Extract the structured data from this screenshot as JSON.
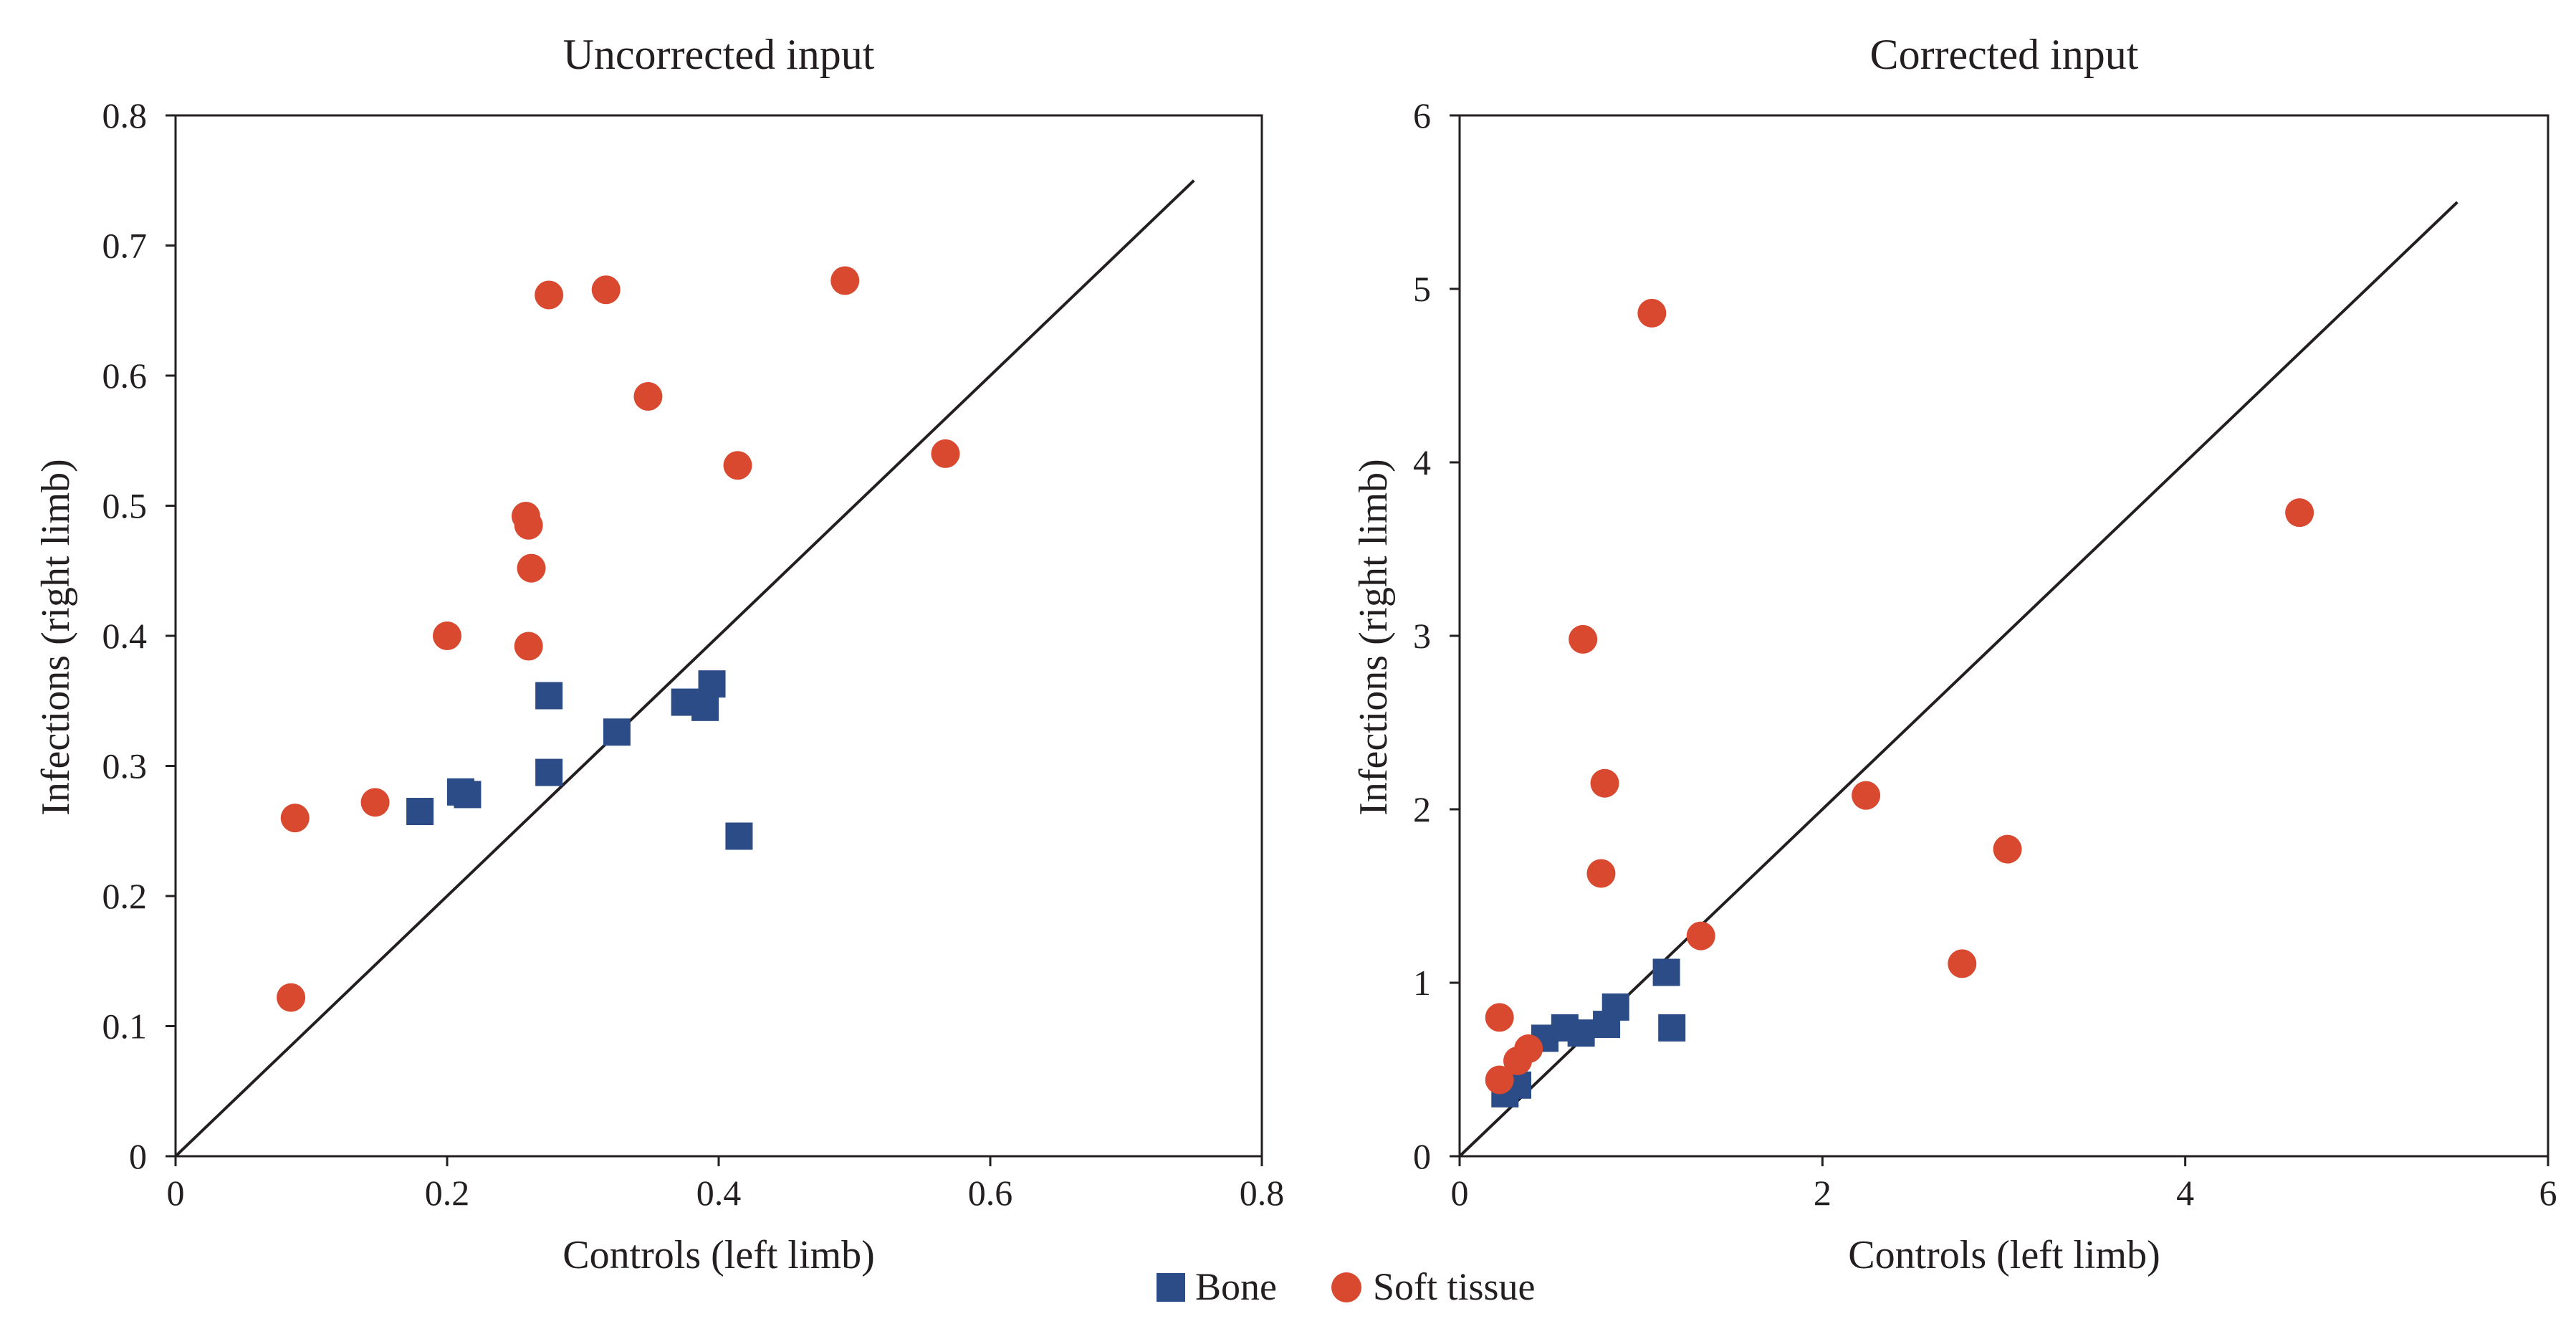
{
  "chart_data": [
    {
      "type": "scatter",
      "title": "Uncorrected input",
      "xlabel": "Controls (left limb)",
      "ylabel": "Infections (right limb)",
      "xlim": [
        0,
        0.8
      ],
      "ylim": [
        0,
        0.8
      ],
      "xticks": [
        "0",
        "0.2",
        "0.4",
        "0.6",
        "0.8"
      ],
      "yticks": [
        "0",
        "0.1",
        "0.2",
        "0.3",
        "0.4",
        "0.5",
        "0.6",
        "0.7",
        "0.8"
      ],
      "reference_line": {
        "from": [
          0,
          0
        ],
        "to": [
          0.75,
          0.75
        ]
      },
      "series": [
        {
          "name": "Bone",
          "marker": "square",
          "color": "#2b4c86",
          "points": [
            [
              0.18,
              0.265
            ],
            [
              0.21,
              0.28
            ],
            [
              0.215,
              0.278
            ],
            [
              0.275,
              0.295
            ],
            [
              0.275,
              0.354
            ],
            [
              0.325,
              0.326
            ],
            [
              0.375,
              0.349
            ],
            [
              0.39,
              0.345
            ],
            [
              0.395,
              0.363
            ],
            [
              0.415,
              0.246
            ]
          ]
        },
        {
          "name": "Soft tissue",
          "marker": "circle",
          "color": "#d8492f",
          "points": [
            [
              0.085,
              0.122
            ],
            [
              0.088,
              0.26
            ],
            [
              0.147,
              0.272
            ],
            [
              0.2,
              0.4
            ],
            [
              0.258,
              0.492
            ],
            [
              0.26,
              0.485
            ],
            [
              0.262,
              0.452
            ],
            [
              0.26,
              0.392
            ],
            [
              0.275,
              0.662
            ],
            [
              0.317,
              0.666
            ],
            [
              0.348,
              0.584
            ],
            [
              0.414,
              0.531
            ],
            [
              0.493,
              0.673
            ],
            [
              0.567,
              0.54
            ]
          ]
        }
      ]
    },
    {
      "type": "scatter",
      "title": "Corrected input",
      "xlabel": "Controls (left limb)",
      "ylabel": "Infections (right limb)",
      "xlim": [
        0,
        6
      ],
      "ylim": [
        0,
        6
      ],
      "xticks": [
        "0",
        "2",
        "4",
        "6"
      ],
      "yticks": [
        "0",
        "1",
        "2",
        "3",
        "4",
        "5",
        "6"
      ],
      "reference_line": {
        "from": [
          0,
          0
        ],
        "to": [
          5.5,
          5.5
        ]
      },
      "series": [
        {
          "name": "Bone",
          "marker": "square",
          "color": "#2b4c86",
          "points": [
            [
              0.25,
              0.36
            ],
            [
              0.32,
              0.41
            ],
            [
              0.47,
              0.68
            ],
            [
              0.58,
              0.74
            ],
            [
              0.67,
              0.71
            ],
            [
              0.81,
              0.76
            ],
            [
              0.86,
              0.86
            ],
            [
              1.14,
              1.06
            ],
            [
              1.17,
              0.74
            ]
          ]
        },
        {
          "name": "Soft tissue",
          "marker": "circle",
          "color": "#d8492f",
          "points": [
            [
              0.22,
              0.8
            ],
            [
              0.22,
              0.44
            ],
            [
              0.32,
              0.55
            ],
            [
              0.38,
              0.62
            ],
            [
              0.68,
              2.98
            ],
            [
              0.78,
              1.63
            ],
            [
              0.8,
              2.15
            ],
            [
              1.06,
              4.86
            ],
            [
              1.33,
              1.27
            ],
            [
              2.24,
              2.08
            ],
            [
              2.77,
              1.11
            ],
            [
              3.02,
              1.77
            ],
            [
              4.63,
              3.71
            ]
          ]
        }
      ]
    }
  ],
  "legend": {
    "items": [
      {
        "label": "Bone",
        "marker": "square",
        "color": "#2b4c86"
      },
      {
        "label": "Soft tissue",
        "marker": "circle",
        "color": "#d8492f"
      }
    ]
  }
}
